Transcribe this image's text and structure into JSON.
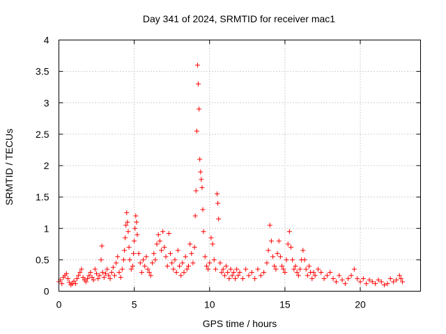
{
  "chart_data": {
    "type": "scatter",
    "title": "Day 341 of 2024, SRMTID for receiver mac1",
    "xlabel": "GPS time / hours",
    "ylabel": "SRMTID / TECUs",
    "xlim": [
      0,
      24
    ],
    "ylim": [
      0,
      4
    ],
    "xticks": [
      0,
      5,
      10,
      15,
      20
    ],
    "yticks": [
      0,
      0.5,
      1,
      1.5,
      2,
      2.5,
      3,
      3.5,
      4
    ],
    "xtick_labels": [
      "0",
      "5",
      "10",
      "15",
      "20"
    ],
    "ytick_labels": [
      "0",
      "0.5",
      "1",
      "1.5",
      "2",
      "2.5",
      "3",
      "3.5",
      "4"
    ],
    "grid": true,
    "marker": "+",
    "color": "#ff0000",
    "series": [
      {
        "name": "SRMTID",
        "points": [
          [
            0.0,
            0.15
          ],
          [
            0.1,
            0.18
          ],
          [
            0.2,
            0.12
          ],
          [
            0.3,
            0.22
          ],
          [
            0.4,
            0.25
          ],
          [
            0.5,
            0.28
          ],
          [
            0.6,
            0.2
          ],
          [
            0.7,
            0.14
          ],
          [
            0.8,
            0.1
          ],
          [
            0.9,
            0.12
          ],
          [
            1.0,
            0.16
          ],
          [
            1.1,
            0.12
          ],
          [
            1.2,
            0.2
          ],
          [
            1.3,
            0.25
          ],
          [
            1.4,
            0.3
          ],
          [
            1.5,
            0.35
          ],
          [
            1.6,
            0.22
          ],
          [
            1.7,
            0.18
          ],
          [
            1.8,
            0.15
          ],
          [
            1.9,
            0.2
          ],
          [
            2.0,
            0.25
          ],
          [
            2.1,
            0.3
          ],
          [
            2.2,
            0.22
          ],
          [
            2.3,
            0.18
          ],
          [
            2.4,
            0.35
          ],
          [
            2.5,
            0.28
          ],
          [
            2.6,
            0.2
          ],
          [
            2.7,
            0.25
          ],
          [
            2.8,
            0.5
          ],
          [
            2.85,
            0.72
          ],
          [
            2.9,
            0.3
          ],
          [
            3.0,
            0.22
          ],
          [
            3.1,
            0.28
          ],
          [
            3.2,
            0.35
          ],
          [
            3.3,
            0.25
          ],
          [
            3.4,
            0.2
          ],
          [
            3.5,
            0.3
          ],
          [
            3.6,
            0.38
          ],
          [
            3.7,
            0.25
          ],
          [
            3.8,
            0.45
          ],
          [
            3.9,
            0.55
          ],
          [
            4.0,
            0.3
          ],
          [
            4.1,
            0.22
          ],
          [
            4.2,
            0.35
          ],
          [
            4.3,
            0.5
          ],
          [
            4.35,
            0.65
          ],
          [
            4.4,
            0.85
          ],
          [
            4.45,
            1.05
          ],
          [
            4.5,
            1.25
          ],
          [
            4.55,
            1.1
          ],
          [
            4.6,
            0.95
          ],
          [
            4.65,
            0.7
          ],
          [
            4.7,
            0.5
          ],
          [
            4.8,
            0.35
          ],
          [
            4.9,
            0.4
          ],
          [
            4.95,
            0.6
          ],
          [
            5.0,
            0.8
          ],
          [
            5.05,
            1.0
          ],
          [
            5.1,
            1.2
          ],
          [
            5.15,
            1.1
          ],
          [
            5.2,
            0.9
          ],
          [
            5.3,
            0.6
          ],
          [
            5.4,
            0.45
          ],
          [
            5.5,
            0.3
          ],
          [
            5.6,
            0.5
          ],
          [
            5.7,
            0.4
          ],
          [
            5.8,
            0.55
          ],
          [
            5.9,
            0.35
          ],
          [
            6.0,
            0.3
          ],
          [
            6.1,
            0.25
          ],
          [
            6.2,
            0.45
          ],
          [
            6.3,
            0.6
          ],
          [
            6.4,
            0.5
          ],
          [
            6.5,
            0.75
          ],
          [
            6.6,
            0.9
          ],
          [
            6.7,
            0.8
          ],
          [
            6.8,
            0.65
          ],
          [
            6.9,
            0.95
          ],
          [
            7.0,
            0.7
          ],
          [
            7.1,
            0.55
          ],
          [
            7.2,
            0.4
          ],
          [
            7.3,
            0.92
          ],
          [
            7.4,
            0.6
          ],
          [
            7.5,
            0.45
          ],
          [
            7.6,
            0.35
          ],
          [
            7.7,
            0.5
          ],
          [
            7.8,
            0.3
          ],
          [
            7.9,
            0.65
          ],
          [
            8.0,
            0.4
          ],
          [
            8.1,
            0.25
          ],
          [
            8.2,
            0.45
          ],
          [
            8.3,
            0.3
          ],
          [
            8.4,
            0.55
          ],
          [
            8.5,
            0.35
          ],
          [
            8.6,
            0.4
          ],
          [
            8.7,
            0.75
          ],
          [
            8.8,
            0.6
          ],
          [
            8.9,
            0.45
          ],
          [
            9.0,
            0.7
          ],
          [
            9.05,
            1.2
          ],
          [
            9.1,
            1.6
          ],
          [
            9.15,
            2.55
          ],
          [
            9.2,
            3.6
          ],
          [
            9.25,
            3.3
          ],
          [
            9.3,
            2.9
          ],
          [
            9.35,
            2.1
          ],
          [
            9.4,
            1.9
          ],
          [
            9.45,
            1.78
          ],
          [
            9.5,
            1.65
          ],
          [
            9.55,
            1.3
          ],
          [
            9.6,
            0.95
          ],
          [
            9.7,
            0.55
          ],
          [
            9.8,
            0.4
          ],
          [
            9.9,
            0.35
          ],
          [
            10.0,
            0.45
          ],
          [
            10.1,
            0.85
          ],
          [
            10.2,
            0.75
          ],
          [
            10.3,
            0.5
          ],
          [
            10.4,
            0.35
          ],
          [
            10.5,
            1.55
          ],
          [
            10.55,
            1.4
          ],
          [
            10.6,
            1.15
          ],
          [
            10.7,
            0.45
          ],
          [
            10.8,
            0.3
          ],
          [
            10.9,
            0.35
          ],
          [
            11.0,
            0.25
          ],
          [
            11.1,
            0.4
          ],
          [
            11.2,
            0.3
          ],
          [
            11.3,
            0.2
          ],
          [
            11.4,
            0.35
          ],
          [
            11.5,
            0.25
          ],
          [
            11.6,
            0.3
          ],
          [
            11.7,
            0.2
          ],
          [
            11.8,
            0.35
          ],
          [
            11.9,
            0.25
          ],
          [
            12.0,
            0.3
          ],
          [
            12.2,
            0.2
          ],
          [
            12.4,
            0.35
          ],
          [
            12.6,
            0.25
          ],
          [
            12.8,
            0.3
          ],
          [
            13.0,
            0.2
          ],
          [
            13.2,
            0.35
          ],
          [
            13.4,
            0.25
          ],
          [
            13.6,
            0.3
          ],
          [
            13.8,
            0.45
          ],
          [
            13.9,
            0.65
          ],
          [
            14.0,
            1.05
          ],
          [
            14.1,
            0.8
          ],
          [
            14.2,
            0.55
          ],
          [
            14.3,
            0.4
          ],
          [
            14.4,
            0.35
          ],
          [
            14.5,
            0.6
          ],
          [
            14.6,
            0.8
          ],
          [
            14.7,
            0.55
          ],
          [
            14.8,
            0.4
          ],
          [
            14.9,
            0.35
          ],
          [
            15.0,
            0.3
          ],
          [
            15.1,
            0.5
          ],
          [
            15.2,
            0.75
          ],
          [
            15.3,
            0.95
          ],
          [
            15.4,
            0.7
          ],
          [
            15.5,
            0.5
          ],
          [
            15.6,
            0.35
          ],
          [
            15.7,
            0.4
          ],
          [
            15.8,
            0.3
          ],
          [
            15.9,
            0.25
          ],
          [
            16.0,
            0.35
          ],
          [
            16.1,
            0.5
          ],
          [
            16.2,
            0.65
          ],
          [
            16.3,
            0.5
          ],
          [
            16.4,
            0.35
          ],
          [
            16.5,
            0.25
          ],
          [
            16.6,
            0.4
          ],
          [
            16.7,
            0.3
          ],
          [
            16.8,
            0.2
          ],
          [
            16.9,
            0.3
          ],
          [
            17.0,
            0.25
          ],
          [
            17.2,
            0.35
          ],
          [
            17.4,
            0.3
          ],
          [
            17.6,
            0.2
          ],
          [
            17.8,
            0.25
          ],
          [
            18.0,
            0.3
          ],
          [
            18.2,
            0.2
          ],
          [
            18.4,
            0.15
          ],
          [
            18.6,
            0.25
          ],
          [
            18.8,
            0.18
          ],
          [
            19.0,
            0.12
          ],
          [
            19.2,
            0.2
          ],
          [
            19.4,
            0.25
          ],
          [
            19.6,
            0.35
          ],
          [
            19.8,
            0.2
          ],
          [
            20.0,
            0.15
          ],
          [
            20.2,
            0.2
          ],
          [
            20.4,
            0.12
          ],
          [
            20.6,
            0.18
          ],
          [
            20.8,
            0.15
          ],
          [
            21.0,
            0.12
          ],
          [
            21.2,
            0.18
          ],
          [
            21.4,
            0.15
          ],
          [
            21.6,
            0.1
          ],
          [
            21.8,
            0.12
          ],
          [
            22.0,
            0.2
          ],
          [
            22.2,
            0.15
          ],
          [
            22.4,
            0.18
          ],
          [
            22.6,
            0.25
          ],
          [
            22.7,
            0.2
          ],
          [
            22.8,
            0.15
          ]
        ]
      }
    ]
  }
}
